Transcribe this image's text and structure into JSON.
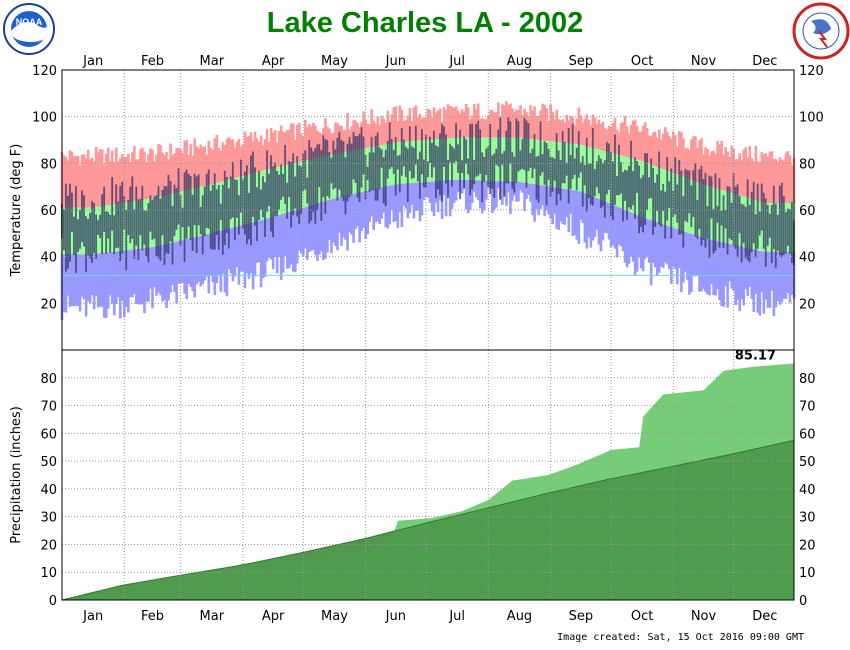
{
  "title": "Lake Charles LA - 2002",
  "footer": "Image created: Sat, 15 Oct 2016 09:00 GMT",
  "logos": {
    "left": {
      "name": "noaa-logo",
      "label": "NOAA",
      "ring_text": "NATIONAL OCEANIC AND ATMOSPHERIC ADMINISTRATION"
    },
    "right": {
      "name": "nws-logo",
      "ring_text": "NATIONAL WEATHER SERVICE"
    }
  },
  "colors": {
    "title": "#008000",
    "record_high_band": "#ff9999",
    "normal_band": "#99ff99",
    "record_low_band": "#9999ff",
    "observed_bar": "#333366",
    "freezing_line": "#66dddd",
    "observed_precip": "#77cc77",
    "normal_precip": "#4d994d",
    "deficit_precip": "#a08c7d"
  },
  "chart_data": [
    {
      "type": "area",
      "name": "temperature",
      "ylabel": "Temperature (deg F)",
      "x_type": "day-of-year",
      "months": [
        "Jan",
        "Feb",
        "Mar",
        "Apr",
        "May",
        "Jun",
        "Jul",
        "Aug",
        "Sep",
        "Oct",
        "Nov",
        "Dec"
      ],
      "ylim": [
        0,
        120
      ],
      "yticks": [
        20,
        40,
        60,
        80,
        100,
        120
      ],
      "grid": true,
      "freezing_line": 32,
      "normal_high_monthly": [
        61,
        65,
        71,
        78,
        84,
        89,
        91,
        91,
        88,
        81,
        71,
        63
      ],
      "normal_low_monthly": [
        41,
        44,
        50,
        57,
        65,
        71,
        73,
        72,
        68,
        57,
        48,
        42
      ],
      "record_high_monthly": [
        83,
        84,
        88,
        92,
        97,
        101,
        102,
        103,
        100,
        95,
        87,
        83
      ],
      "record_low_monthly": [
        18,
        21,
        27,
        34,
        46,
        56,
        64,
        63,
        51,
        35,
        26,
        20
      ],
      "observed_high_monthly": [
        64,
        68,
        70,
        79,
        85,
        89,
        90,
        91,
        88,
        80,
        70,
        64
      ],
      "observed_low_monthly": [
        42,
        44,
        48,
        56,
        65,
        71,
        72,
        72,
        68,
        58,
        48,
        44
      ]
    },
    {
      "type": "area",
      "name": "precipitation",
      "ylabel": "Precipitation (inches)",
      "x_type": "day-of-year",
      "months": [
        "Jan",
        "Feb",
        "Mar",
        "Apr",
        "May",
        "Jun",
        "Jul",
        "Aug",
        "Sep",
        "Oct",
        "Nov",
        "Dec"
      ],
      "ylim": [
        0,
        90
      ],
      "yticks": [
        0,
        10,
        20,
        30,
        40,
        50,
        60,
        70,
        80
      ],
      "grid": true,
      "total_label": "85.17",
      "observed_cumulative": [
        [
          1,
          0
        ],
        [
          15,
          2.0
        ],
        [
          32,
          5.0
        ],
        [
          50,
          7.0
        ],
        [
          60,
          9.0
        ],
        [
          75,
          10.0
        ],
        [
          91,
          13.0
        ],
        [
          110,
          14.0
        ],
        [
          121,
          14.0
        ],
        [
          140,
          15.0
        ],
        [
          152,
          17.0
        ],
        [
          165,
          22.0
        ],
        [
          168,
          28.5
        ],
        [
          185,
          29.5
        ],
        [
          200,
          32.0
        ],
        [
          213,
          36.0
        ],
        [
          225,
          43.0
        ],
        [
          243,
          45.0
        ],
        [
          258,
          49.0
        ],
        [
          274,
          54.0
        ],
        [
          288,
          55.0
        ],
        [
          290,
          66.0
        ],
        [
          300,
          74.0
        ],
        [
          320,
          75.5
        ],
        [
          330,
          82.5
        ],
        [
          345,
          84.0
        ],
        [
          365,
          85.17
        ]
      ],
      "normal_cumulative": [
        [
          1,
          0
        ],
        [
          31,
          5.3
        ],
        [
          59,
          8.8
        ],
        [
          90,
          12.5
        ],
        [
          120,
          17.0
        ],
        [
          151,
          22.0
        ],
        [
          181,
          27.5
        ],
        [
          212,
          33.0
        ],
        [
          243,
          38.5
        ],
        [
          273,
          43.5
        ],
        [
          304,
          48.0
        ],
        [
          334,
          52.5
        ],
        [
          365,
          57.5
        ]
      ]
    }
  ]
}
